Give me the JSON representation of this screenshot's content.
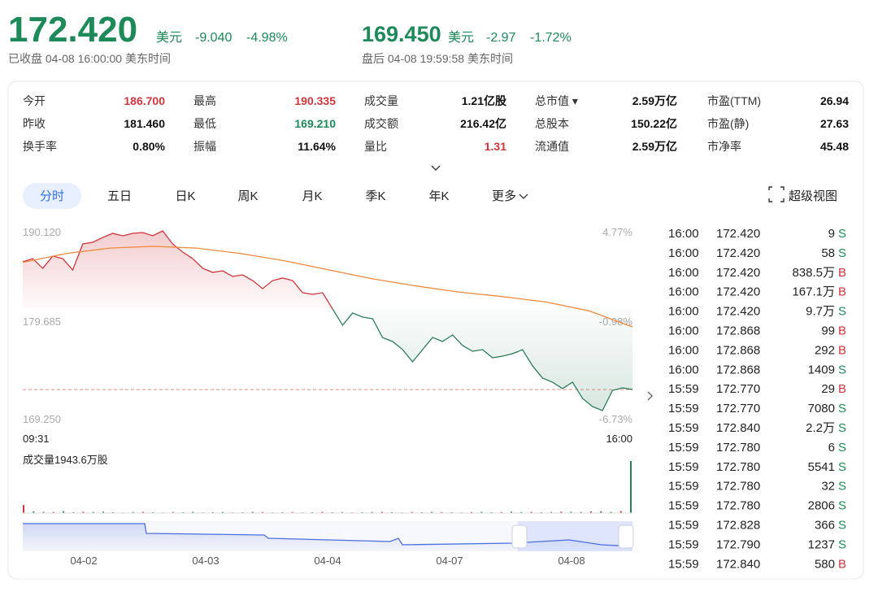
{
  "header": {
    "price": "172.420",
    "currency": "美元",
    "change": "-9.040",
    "change_pct": "-4.98%",
    "status": "已收盘 04-08 16:00:00 美东时间",
    "after": {
      "price": "169.450",
      "currency": "美元",
      "change": "-2.97",
      "change_pct": "-1.72%",
      "status": "盘后 04-08 19:59:58 美东时间"
    }
  },
  "stats": [
    [
      {
        "label": "今开",
        "value": "186.700",
        "color": "#d0343c"
      },
      {
        "label": "最高",
        "value": "190.335",
        "color": "#d0343c"
      },
      {
        "label": "成交量",
        "value": "1.21亿股"
      },
      {
        "label": "总市值 ▾",
        "value": "2.59万亿"
      },
      {
        "label": "市盈(TTM)",
        "value": "26.94"
      }
    ],
    [
      {
        "label": "昨收",
        "value": "181.460"
      },
      {
        "label": "最低",
        "value": "169.210",
        "color": "#1e8a5a"
      },
      {
        "label": "成交额",
        "value": "216.42亿"
      },
      {
        "label": "总股本",
        "value": "150.22亿"
      },
      {
        "label": "市盈(静)",
        "value": "27.63"
      }
    ],
    [
      {
        "label": "换手率",
        "value": "0.80%"
      },
      {
        "label": "振幅",
        "value": "11.64%"
      },
      {
        "label": "量比",
        "value": "1.31",
        "color": "#d0343c"
      },
      {
        "label": "流通值",
        "value": "2.59万亿"
      },
      {
        "label": "市净率",
        "value": "45.48"
      }
    ]
  ],
  "tabs": [
    "分时",
    "五日",
    "日K",
    "周K",
    "月K",
    "季K",
    "年K",
    "更多"
  ],
  "selected_tab": 0,
  "super_view": "超级视图",
  "chart_data": {
    "type": "line",
    "ylim": [
      169.25,
      190.12
    ],
    "yticks": [
      {
        "value": 190.12,
        "label": "190.120"
      },
      {
        "value": 179.685,
        "label": "179.685"
      },
      {
        "value": 169.25,
        "label": "169.250"
      }
    ],
    "y2lim": [
      -6.73,
      4.77
    ],
    "y2ticks": [
      {
        "value": 4.77,
        "label": "4.77%"
      },
      {
        "value": -0.98,
        "label": "-0.98%"
      },
      {
        "value": -6.73,
        "label": "-6.73%"
      }
    ],
    "x_labels": [
      "09:31",
      "16:00"
    ],
    "up_color": "#d0343c",
    "down_color": "#2e7d5b",
    "series": [
      {
        "color": "#d0343c",
        "values": [
          186.67,
          187.03,
          185.95,
          187.31,
          187.03,
          185.76,
          188.67,
          188.85,
          189.39,
          189.85,
          189.58,
          189.85,
          189.94,
          189.58,
          190.12,
          188.67,
          187.76,
          187.03,
          185.95,
          185.49,
          185.67,
          185.04,
          185.22,
          184.58,
          183.68,
          184.58,
          184.86,
          184.58,
          183.22,
          183.04,
          183.22,
          181.41,
          179.59,
          180.96,
          180.5,
          180.32,
          178.21,
          177.78,
          176.87,
          175.51,
          176.87,
          178.23,
          177.78,
          178.51,
          177.33,
          176.69,
          176.87,
          175.96,
          176.15,
          176.42,
          176.87,
          175.06,
          173.7,
          173.24,
          172.52,
          173.24,
          171.43,
          170.52,
          170.07,
          172.33,
          172.6,
          172.42
        ]
      },
      {
        "color": "#f08a3c",
        "values": [
          186.6,
          187.6,
          188.2,
          188.4,
          188.2,
          187.6,
          186.8,
          185.8,
          184.8,
          184.0,
          183.3,
          182.8,
          182.2,
          181.2,
          179.4
        ]
      }
    ],
    "volume_label": "成交量1943.6万股",
    "volume": [
      40,
      8,
      6,
      5,
      9,
      4,
      6,
      5,
      7,
      4,
      3,
      5,
      6,
      4,
      3,
      5,
      4,
      6,
      3,
      4,
      5,
      3,
      4,
      6,
      5,
      3,
      4,
      5,
      3,
      4,
      6,
      4,
      5,
      3,
      4,
      5,
      6,
      4,
      3,
      5,
      4,
      6,
      5,
      4,
      3,
      5,
      6,
      4,
      5,
      7,
      5,
      6,
      4,
      5,
      7,
      6,
      5,
      8,
      9,
      6,
      10,
      260
    ],
    "navigator_dates": [
      "04-02",
      "04-03",
      "04-04",
      "04-07",
      "04-08"
    ]
  },
  "trades": [
    [
      "16:00",
      "172.420",
      "9",
      "S"
    ],
    [
      "16:00",
      "172.420",
      "58",
      "S"
    ],
    [
      "16:00",
      "172.420",
      "838.5万",
      "B"
    ],
    [
      "16:00",
      "172.420",
      "167.1万",
      "B"
    ],
    [
      "16:00",
      "172.420",
      "9.7万",
      "S"
    ],
    [
      "16:00",
      "172.868",
      "99",
      "B"
    ],
    [
      "16:00",
      "172.868",
      "292",
      "B"
    ],
    [
      "16:00",
      "172.868",
      "1409",
      "S"
    ],
    [
      "15:59",
      "172.770",
      "29",
      "B"
    ],
    [
      "15:59",
      "172.770",
      "7080",
      "S"
    ],
    [
      "15:59",
      "172.840",
      "2.2万",
      "S"
    ],
    [
      "15:59",
      "172.780",
      "6",
      "S"
    ],
    [
      "15:59",
      "172.780",
      "5541",
      "S"
    ],
    [
      "15:59",
      "172.780",
      "32",
      "S"
    ],
    [
      "15:59",
      "172.780",
      "2806",
      "S"
    ],
    [
      "15:59",
      "172.828",
      "366",
      "S"
    ],
    [
      "15:59",
      "172.790",
      "1237",
      "S"
    ],
    [
      "15:59",
      "172.840",
      "580",
      "B"
    ]
  ]
}
